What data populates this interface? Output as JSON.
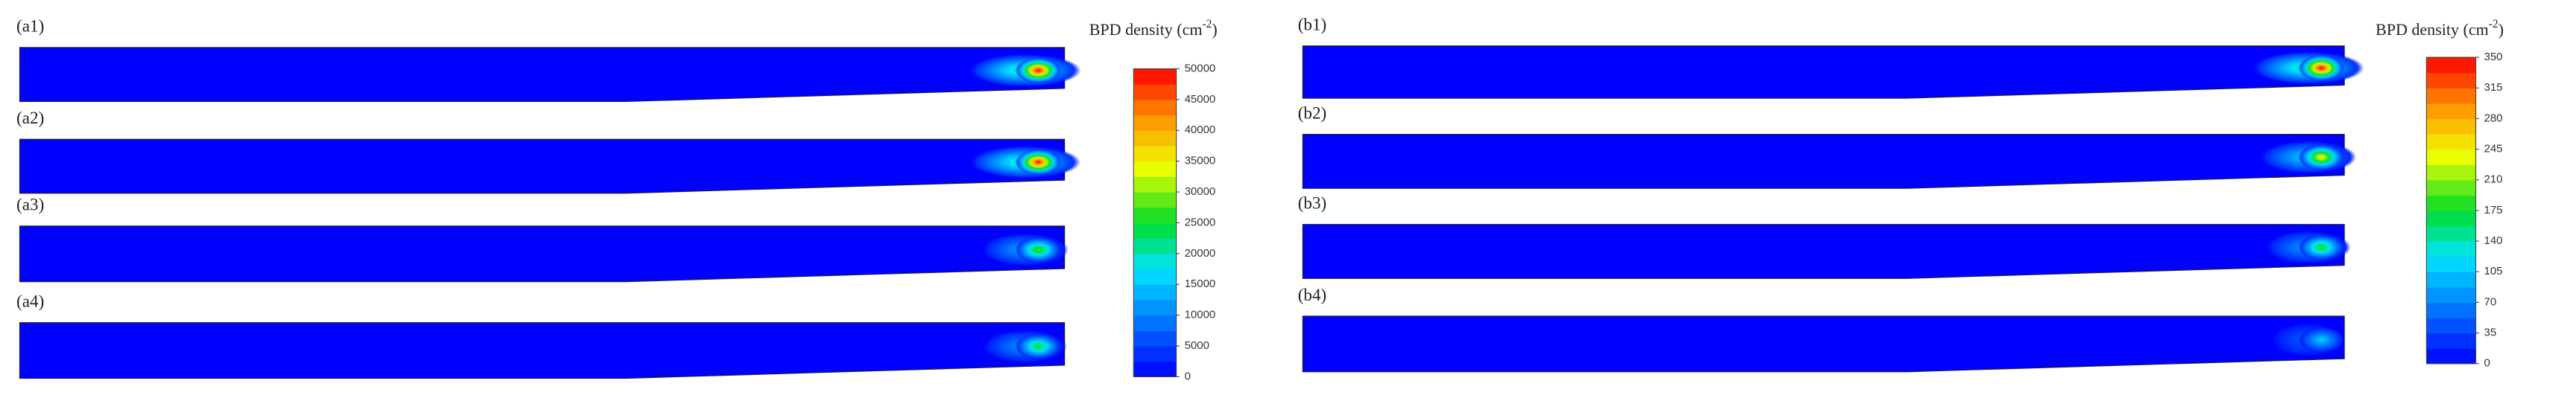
{
  "panels": {
    "a": {
      "labels": [
        "(a1)",
        "(a2)",
        "(a3)",
        "(a4)"
      ],
      "colorbar": {
        "title": "BPD density (cm",
        "title_exponent": "-2",
        "title_end": ")",
        "ticks": [
          0,
          5000,
          10000,
          15000,
          20000,
          25000,
          30000,
          35000,
          40000,
          45000,
          50000
        ]
      }
    },
    "b": {
      "labels": [
        "(b1)",
        "(b2)",
        "(b3)",
        "(b4)"
      ],
      "colorbar": {
        "title": "BPD density (cm",
        "title_exponent": "-2",
        "title_end": ")",
        "ticks": [
          0,
          35,
          70,
          105,
          140,
          175,
          210,
          245,
          280,
          315,
          350
        ]
      }
    }
  }
}
